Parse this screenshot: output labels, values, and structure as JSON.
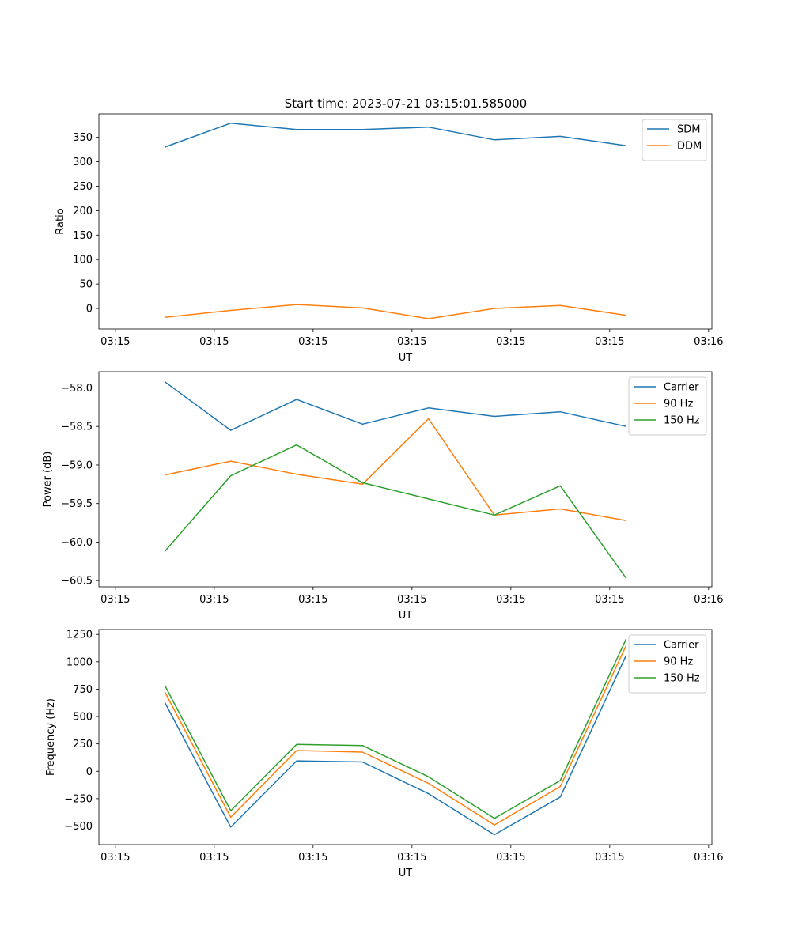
{
  "figure_title": "Start time: 2023-07-21 03:15:01.585000",
  "chart_data": [
    {
      "type": "line",
      "x": [
        1,
        2,
        3,
        4,
        5,
        6,
        7,
        8
      ],
      "xlim": [
        0,
        9.3
      ],
      "xticks": [
        0.25,
        1.75,
        3.25,
        4.75,
        6.25,
        7.75,
        9.25
      ],
      "xtick_labels": [
        "03:15",
        "03:15",
        "03:15",
        "03:15",
        "03:15",
        "03:15",
        "03:16"
      ],
      "xlabel": "UT",
      "ylabel": "Ratio",
      "ylim": [
        -42,
        398
      ],
      "yticks": [
        0,
        50,
        100,
        150,
        200,
        250,
        300,
        350
      ],
      "ytick_labels": [
        "0",
        "50",
        "100",
        "150",
        "200",
        "250",
        "300",
        "350"
      ],
      "legend_position": "top-right",
      "series": [
        {
          "name": "SDM",
          "color": "#1f77b4",
          "values": [
            330,
            379,
            366,
            366,
            371,
            345,
            352,
            333
          ]
        },
        {
          "name": "DDM",
          "color": "#ff7f0e",
          "values": [
            -18,
            -4,
            8,
            1,
            -21,
            0,
            6,
            -14
          ]
        }
      ]
    },
    {
      "type": "line",
      "x": [
        1,
        2,
        3,
        4,
        5,
        6,
        7,
        8
      ],
      "xlim": [
        0,
        9.3
      ],
      "xticks": [
        0.25,
        1.75,
        3.25,
        4.75,
        6.25,
        7.75,
        9.25
      ],
      "xtick_labels": [
        "03:15",
        "03:15",
        "03:15",
        "03:15",
        "03:15",
        "03:15",
        "03:16"
      ],
      "xlabel": "UT",
      "ylabel": "Power (dB)",
      "ylim": [
        -60.58,
        -57.79
      ],
      "yticks": [
        -58.0,
        -58.5,
        -59.0,
        -59.5,
        -60.0,
        -60.5
      ],
      "ytick_labels": [
        "−58.0",
        "−58.5",
        "−59.0",
        "−59.5",
        "−60.0",
        "−60.5"
      ],
      "legend_position": "top-right",
      "series": [
        {
          "name": "Carrier",
          "color": "#1f77b4",
          "values": [
            -57.92,
            -58.55,
            -58.15,
            -58.47,
            -58.26,
            -58.37,
            -58.31,
            -58.5
          ]
        },
        {
          "name": "90 Hz",
          "color": "#ff7f0e",
          "values": [
            -59.13,
            -58.95,
            -59.12,
            -59.25,
            -58.4,
            -59.65,
            -59.57,
            -59.72
          ]
        },
        {
          "name": "150 Hz",
          "color": "#2ca02c",
          "values": [
            -60.12,
            -59.14,
            -58.74,
            -59.23,
            -59.44,
            -59.65,
            -59.27,
            -60.47
          ]
        }
      ]
    },
    {
      "type": "line",
      "x": [
        1,
        2,
        3,
        4,
        5,
        6,
        7,
        8
      ],
      "xlim": [
        0,
        9.3
      ],
      "xticks": [
        0.25,
        1.75,
        3.25,
        4.75,
        6.25,
        7.75,
        9.25
      ],
      "xtick_labels": [
        "03:15",
        "03:15",
        "03:15",
        "03:15",
        "03:15",
        "03:15",
        "03:16"
      ],
      "xlabel": "UT",
      "ylabel": "Frequency (Hz)",
      "ylim": [
        -670,
        1295
      ],
      "yticks": [
        -500,
        -250,
        0,
        250,
        500,
        750,
        1000,
        1250
      ],
      "ytick_labels": [
        "−500",
        "−250",
        "0",
        "250",
        "500",
        "750",
        "1000",
        "1250"
      ],
      "legend_position": "top-right",
      "series": [
        {
          "name": "Carrier",
          "color": "#1f77b4",
          "values": [
            630,
            -510,
            95,
            85,
            -205,
            -580,
            -235,
            1060
          ]
        },
        {
          "name": "90 Hz",
          "color": "#ff7f0e",
          "values": [
            725,
            -420,
            190,
            175,
            -110,
            -490,
            -140,
            1150
          ]
        },
        {
          "name": "150 Hz",
          "color": "#2ca02c",
          "values": [
            785,
            -360,
            245,
            235,
            -50,
            -430,
            -85,
            1210
          ]
        }
      ]
    }
  ]
}
